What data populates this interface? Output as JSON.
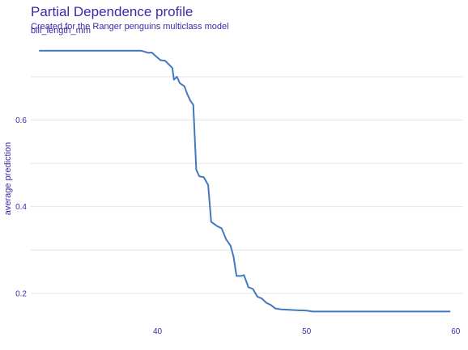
{
  "title": "Partial Dependence profile",
  "subtitle": "Created for the Ranger penguins multiclass model",
  "facet_label": "bill_length_mm",
  "colors": {
    "text": "#3b2aa8",
    "line": "#4378bf",
    "grid": "#e4e4e4"
  },
  "chart_data": {
    "type": "line",
    "title": "Partial Dependence profile",
    "subtitle": "Created for the Ranger penguins multiclass model",
    "xlabel": "",
    "ylabel": "average prediction",
    "xlim": [
      31.5,
      60.5
    ],
    "ylim": [
      0.14,
      0.78
    ],
    "x_ticks": [
      40,
      50,
      60
    ],
    "x_tick_labels": [
      "40",
      "50",
      "60"
    ],
    "y_ticks": [
      0.2,
      0.4,
      0.6
    ],
    "y_tick_labels": [
      "0.2",
      "0.4",
      "0.6"
    ],
    "y_minor_gridlines": [
      0.3,
      0.5,
      0.7
    ],
    "grid": true,
    "legend": "none",
    "series": [
      {
        "x": [
          32.1,
          34.0,
          36.0,
          38.0,
          38.9,
          39.4,
          39.6,
          40.2,
          40.5,
          40.8,
          41.0,
          41.1,
          41.3,
          41.5,
          41.8,
          42.0,
          42.2,
          42.4,
          42.6,
          42.8,
          43.1,
          43.4,
          43.6,
          43.8,
          44.0,
          44.3,
          44.6,
          44.9,
          45.1,
          45.3,
          45.6,
          45.8,
          46.1,
          46.4,
          46.7,
          47.0,
          47.3,
          47.6,
          47.9,
          48.3,
          48.8,
          49.3,
          50.0,
          50.4,
          51.0,
          52.0,
          54.0,
          56.0,
          58.0,
          59.6
        ],
        "y": [
          0.76,
          0.76,
          0.76,
          0.76,
          0.76,
          0.755,
          0.756,
          0.738,
          0.737,
          0.727,
          0.72,
          0.693,
          0.7,
          0.685,
          0.678,
          0.66,
          0.645,
          0.635,
          0.485,
          0.47,
          0.468,
          0.45,
          0.365,
          0.36,
          0.355,
          0.35,
          0.325,
          0.31,
          0.285,
          0.24,
          0.24,
          0.242,
          0.214,
          0.21,
          0.192,
          0.188,
          0.178,
          0.173,
          0.165,
          0.163,
          0.162,
          0.161,
          0.16,
          0.158,
          0.158,
          0.158,
          0.158,
          0.158,
          0.158,
          0.158
        ]
      }
    ]
  }
}
